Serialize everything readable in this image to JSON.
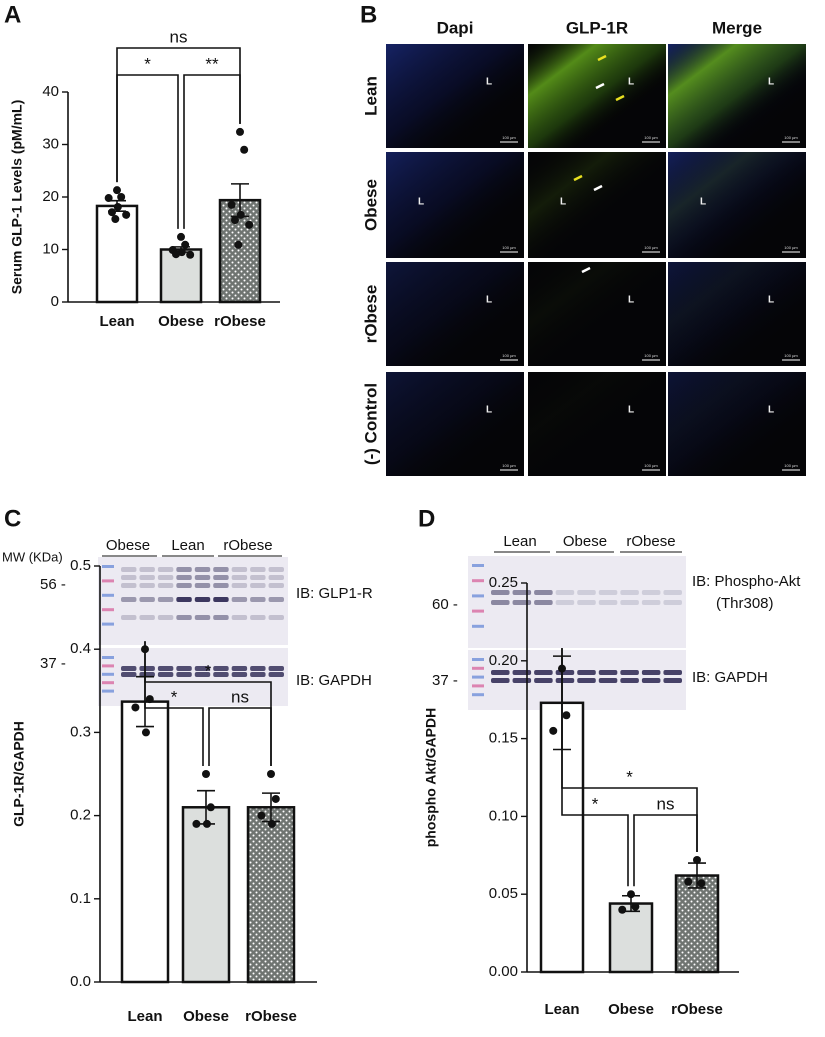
{
  "panel_labels": [
    "A",
    "B",
    "C",
    "D"
  ],
  "chart_data": [
    {
      "type": "bar",
      "y_label": "Serum GLP-1 Levels (pM/mL)",
      "categories": [
        "Lean",
        "Obese",
        "rObese"
      ],
      "values": [
        18.3,
        10.0,
        19.4
      ],
      "errors": [
        1.0,
        0.5,
        3.1
      ],
      "points": [
        [
          21.3,
          20.0,
          19.8,
          18.1,
          17.1,
          16.6,
          15.8
        ],
        [
          12.4,
          10.9,
          9.9,
          9.5,
          9.1,
          9.0
        ],
        [
          32.4,
          29.0,
          18.5,
          16.6,
          15.6,
          14.7,
          10.9
        ]
      ],
      "colors": [
        "#ffffff",
        "#dcdfdd",
        "#6f7471"
      ],
      "dotted": [
        false,
        false,
        true
      ],
      "ylim": [
        0,
        40
      ],
      "yticks": [
        0,
        10,
        20,
        30,
        40
      ],
      "significance": [
        {
          "groups": [
            "Lean",
            "rObese"
          ],
          "label": "ns"
        },
        {
          "groups": [
            "Lean",
            "Obese"
          ],
          "label": "*"
        },
        {
          "groups": [
            "Obese",
            "rObese"
          ],
          "label": "**"
        }
      ]
    },
    {
      "type": "bar",
      "y_label": "GLP-1R/GAPDH",
      "categories": [
        "Lean",
        "Obese",
        "rObese"
      ],
      "values": [
        0.337,
        0.21,
        0.21
      ],
      "errors": [
        0.03,
        0.02,
        0.017
      ],
      "points": [
        [
          0.4,
          0.34,
          0.33,
          0.3
        ],
        [
          0.25,
          0.21,
          0.19,
          0.19
        ],
        [
          0.25,
          0.22,
          0.2,
          0.19
        ]
      ],
      "colors": [
        "#ffffff",
        "#dcdfdd",
        "#6f7471"
      ],
      "dotted": [
        false,
        false,
        true
      ],
      "ylim": [
        0,
        0.5
      ],
      "yticks": [
        {
          "value": 0,
          "label": "0.0"
        },
        0.1,
        0.2,
        0.3,
        0.4,
        0.5
      ],
      "significance": [
        {
          "groups": [
            "Lean",
            "rObese"
          ],
          "label": "*"
        },
        {
          "groups": [
            "Lean",
            "Obese"
          ],
          "label": "*"
        },
        {
          "groups": [
            "Obese",
            "rObese"
          ],
          "label": "ns"
        }
      ]
    },
    {
      "type": "bar",
      "y_label": "phospho Akt/GAPDH",
      "categories": [
        "Lean",
        "Obese",
        "rObese"
      ],
      "values": [
        0.173,
        0.044,
        0.062
      ],
      "errors": [
        0.03,
        0.005,
        0.008
      ],
      "points": [
        [
          0.195,
          0.165,
          0.155
        ],
        [
          0.05,
          0.042,
          0.04
        ],
        [
          0.072,
          0.057,
          0.058
        ]
      ],
      "colors": [
        "#ffffff",
        "#dcdfdd",
        "#6f7471"
      ],
      "dotted": [
        false,
        false,
        true
      ],
      "ylim": [
        0,
        0.25
      ],
      "yticks": [
        {
          "value": 0,
          "label": "0.00"
        },
        {
          "value": 0.05,
          "label": "0.05"
        },
        {
          "value": 0.1,
          "label": "0.10"
        },
        {
          "value": 0.15,
          "label": "0.15"
        },
        {
          "value": 0.2,
          "label": "0.20"
        },
        {
          "value": 0.25,
          "label": "0.25"
        }
      ],
      "significance": [
        {
          "groups": [
            "Lean",
            "rObese"
          ],
          "label": "*"
        },
        {
          "groups": [
            "Lean",
            "Obese"
          ],
          "label": "*"
        },
        {
          "groups": [
            "Obese",
            "rObese"
          ],
          "label": "ns"
        }
      ]
    }
  ],
  "microscopy": {
    "columns": [
      "Dapi",
      "GLP-1R",
      "Merge"
    ],
    "rows": [
      "Lean",
      "Obese",
      "rObese",
      "(-) Control"
    ],
    "lumen_label": "L",
    "scale_bar": "100 µm"
  },
  "blot_c": {
    "groups": [
      "Obese",
      "Lean",
      "rObese"
    ],
    "mw_label": "MW (KDa)",
    "markers": [
      "56 -",
      "37 -"
    ],
    "targets": [
      "IB: GLP1-R",
      "IB: GAPDH"
    ]
  },
  "blot_d": {
    "groups": [
      "Lean",
      "Obese",
      "rObese"
    ],
    "markers": [
      "60 -",
      "37 -"
    ],
    "targets": [
      "IB: Phospho-Akt",
      "(Thr308)",
      "IB: GAPDH"
    ]
  }
}
